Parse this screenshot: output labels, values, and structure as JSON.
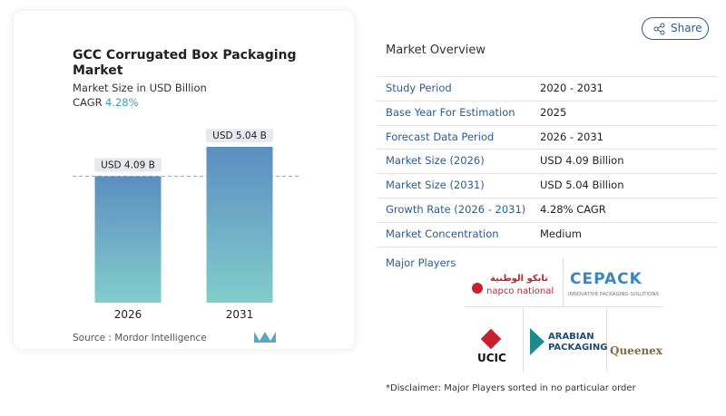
{
  "chart_data": {
    "type": "bar",
    "title": "GCC Corrugated Box Packaging Market",
    "subtitle": "Market Size in USD Billion",
    "cagr_label": "CAGR",
    "cagr": "4.28%",
    "categories": [
      "2026",
      "2031"
    ],
    "values": [
      4.09,
      5.04
    ],
    "value_labels": [
      "USD 4.09 B",
      "USD 5.04 B"
    ],
    "colors": [
      "#5b8ec0",
      "#82cdcb"
    ],
    "source": "Source :  Mordor Intelligence"
  },
  "share": "Share",
  "overview": {
    "title": "Market Overview",
    "rows": [
      [
        "Study Period",
        "2020 - 2031"
      ],
      [
        "Base Year For Estimation",
        "2025"
      ],
      [
        "Forecast Data Period",
        "2026 - 2031"
      ],
      [
        "Market Size (2026)",
        "USD 4.09 Billion"
      ],
      [
        "Market Size (2031)",
        "USD 5.04 Billion"
      ],
      [
        "Growth Rate (2026 - 2031)",
        "4.28% CAGR"
      ],
      [
        "Market Concentration",
        "Medium"
      ]
    ]
  },
  "players": {
    "title": "Major Players",
    "logos": [
      "نابكو الوطنية",
      "napco national",
      "CEPACK",
      "INNOVATIVE PACKAGING SOLUTIONS",
      "UCIC",
      "ARABIAN",
      "PACKAGING",
      "Queenex"
    ]
  },
  "disclaimer": "*Disclaimer: Major Players sorted in no particular order"
}
